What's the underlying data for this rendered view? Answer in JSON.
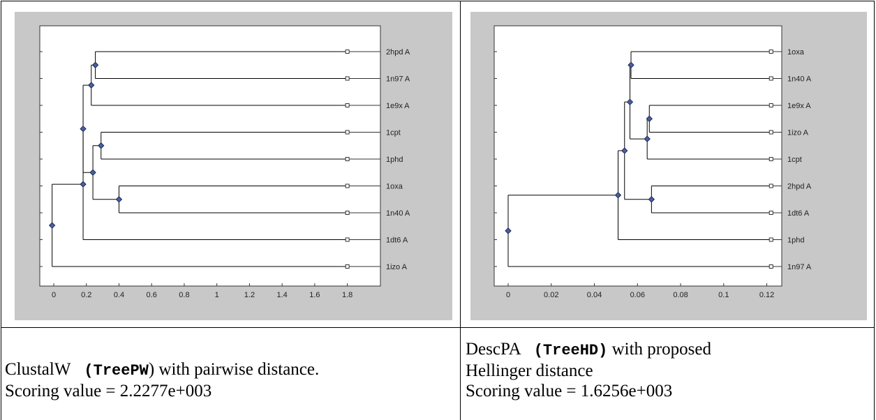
{
  "chart_data": [
    {
      "type": "dendrogram",
      "xlim": [
        0,
        1.9
      ],
      "ticks": [
        0,
        0.2,
        0.4,
        0.6,
        0.8,
        1,
        1.2,
        1.4,
        1.6,
        1.8
      ],
      "tick_labels": [
        "0",
        "0.2",
        "0.4",
        "0.6",
        "0.8",
        "1",
        "1.2",
        "1.4",
        "1.6",
        "1.8"
      ],
      "leaf_x": 1.8,
      "leaves": [
        "2hpd A",
        "1n97 A",
        "1e9x A",
        "1cpt",
        "1phd",
        "1oxa",
        "1n40 A",
        "1dt6 A",
        "1izo A"
      ],
      "nodes": [
        {
          "id": "a",
          "x": 0.255,
          "children": [
            0,
            1
          ]
        },
        {
          "id": "b",
          "x": 0.23,
          "children": [
            "a",
            2
          ]
        },
        {
          "id": "c",
          "x": 0.29,
          "children": [
            3,
            4
          ]
        },
        {
          "id": "d",
          "x": 0.4,
          "children": [
            5,
            6
          ]
        },
        {
          "id": "e",
          "x": 0.24,
          "children": [
            "c",
            "d"
          ]
        },
        {
          "id": "f",
          "x": 0.18,
          "children": [
            "b",
            "e"
          ]
        },
        {
          "id": "g",
          "x": 0.18,
          "children": [
            "f",
            7
          ]
        },
        {
          "id": "root",
          "x": -0.01,
          "children": [
            "g",
            8
          ]
        }
      ]
    },
    {
      "type": "dendrogram",
      "xlim": [
        0,
        0.125
      ],
      "ticks": [
        0,
        0.02,
        0.04,
        0.06,
        0.08,
        0.1,
        0.12
      ],
      "tick_labels": [
        "0",
        "0.02",
        "0.04",
        "0.06",
        "0.08",
        "0.1",
        "0.12"
      ],
      "leaf_x": 0.122,
      "leaves": [
        "1oxa",
        "1n40 A",
        "1e9x A",
        "1izo A",
        "1cpt",
        "2hpd A",
        "1dt6 A",
        "1phd",
        "1n97 A"
      ],
      "nodes": [
        {
          "id": "a",
          "x": 0.057,
          "children": [
            0,
            1
          ]
        },
        {
          "id": "b",
          "x": 0.0655,
          "children": [
            2,
            3
          ]
        },
        {
          "id": "c",
          "x": 0.0645,
          "children": [
            "b",
            4
          ]
        },
        {
          "id": "d",
          "x": 0.0565,
          "children": [
            "a",
            "c"
          ]
        },
        {
          "id": "e",
          "x": 0.0665,
          "children": [
            5,
            6
          ]
        },
        {
          "id": "f",
          "x": 0.054,
          "children": [
            "d",
            "e"
          ]
        },
        {
          "id": "g",
          "x": 0.051,
          "children": [
            "f",
            7
          ]
        },
        {
          "id": "root",
          "x": 0,
          "children": [
            "g",
            8
          ]
        }
      ]
    }
  ],
  "captions": {
    "left": {
      "prefix": "ClustalW ",
      "code": " (TreePW",
      "suffix": ") with pairwise distance.",
      "line2": "Scoring value = 2.2277e+003"
    },
    "right": {
      "prefix": "DescPA ",
      "code": " (TreeHD)",
      "suffix": " with proposed",
      "line2": "Hellinger distance",
      "line3": "Scoring value =  1.6256e+003"
    }
  },
  "colors": {
    "panel_bg": "#c8c8c8",
    "plot_bg": "#ffffff",
    "node_fill": "#4a5fa0",
    "node_stroke": "#1e2a55",
    "line": "#000000"
  }
}
